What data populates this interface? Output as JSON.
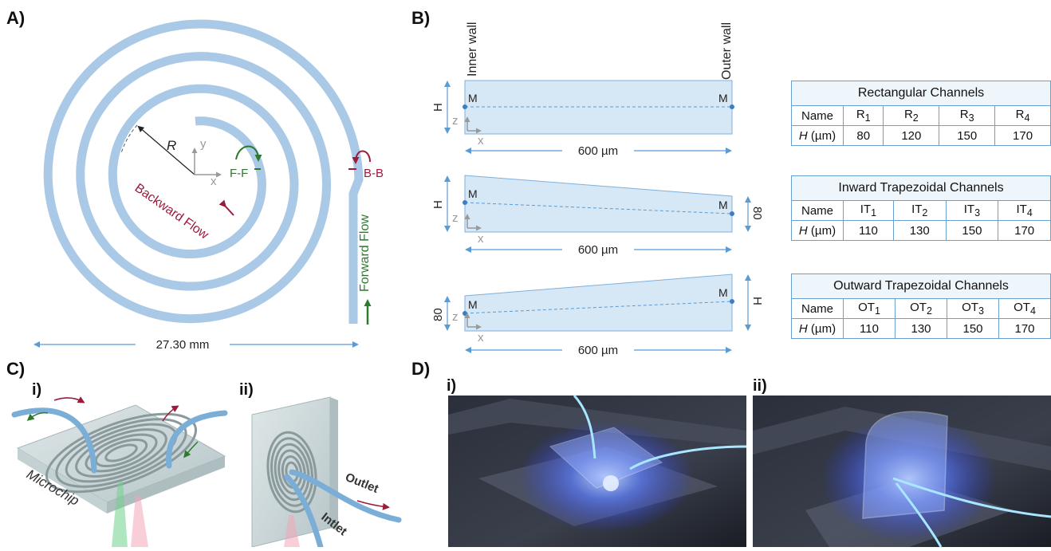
{
  "panels": {
    "a": "A)",
    "b": "B)",
    "c": "C)",
    "c_i": "i)",
    "c_ii": "ii)",
    "d": "D)",
    "d_i": "i)",
    "d_ii": "ii)"
  },
  "spiral": {
    "radius_label": "R",
    "ff_label": "F-F",
    "bb_label": "B-B",
    "backward_flow": "Backward Flow",
    "forward_flow": "Forward Flow",
    "x_axis": "x",
    "y_axis": "y",
    "width_dim": "27.30 mm"
  },
  "cross_sections": {
    "inner_wall": "Inner wall",
    "outer_wall": "Outer wall",
    "height_label": "H",
    "point_label": "M",
    "z_axis": "z",
    "x_axis": "x",
    "width_dim": "600 µm",
    "fixed_height": "80"
  },
  "tables": [
    {
      "title": "Rectangular Channels",
      "name_label": "Name",
      "h_label": "H",
      "h_unit": " (µm)",
      "prefix": "R",
      "subs": [
        "1",
        "2",
        "3",
        "4"
      ],
      "values": [
        "80",
        "120",
        "150",
        "170"
      ]
    },
    {
      "title": "Inward Trapezoidal Channels",
      "name_label": "Name",
      "h_label": "H",
      "h_unit": " (µm)",
      "prefix": "IT",
      "subs": [
        "1",
        "2",
        "3",
        "4"
      ],
      "values": [
        "110",
        "130",
        "150",
        "170"
      ]
    },
    {
      "title": "Outward Trapezoidal Channels",
      "name_label": "Name",
      "h_label": "H",
      "h_unit": " (µm)",
      "prefix": "OT",
      "subs": [
        "1",
        "2",
        "3",
        "4"
      ],
      "values": [
        "110",
        "130",
        "150",
        "170"
      ]
    }
  ],
  "chip": {
    "microchip": "Microchip",
    "outlet": "Outlet",
    "inlet": "Intlet"
  },
  "colors": {
    "channel": "#a9c9e6",
    "section_fill": "#d6e7f6",
    "section_edge": "#7fb0dc",
    "dim_line": "#5a9bd3",
    "forward": "#2c7a2c",
    "backward": "#9b1b3d",
    "table_border": "#6aa0cf",
    "table_head": "#eef5fb"
  }
}
